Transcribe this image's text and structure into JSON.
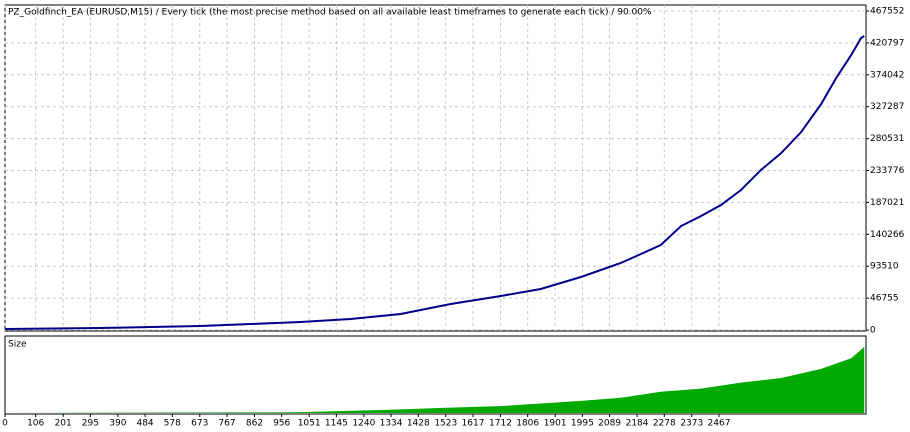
{
  "chart_data": [
    {
      "type": "line",
      "title": "PZ_Goldfinch_EA (EURUSD,M15) / Every tick (the most precise method based on all available least timeframes to generate each tick) / 90.00%",
      "x": [
        0,
        329,
        675,
        848,
        1021,
        1194,
        1367,
        1540,
        1713,
        1851,
        1990,
        2128,
        2266,
        2336,
        2405,
        2474,
        2543,
        2612,
        2682,
        2751,
        2820,
        2872,
        2924,
        2958,
        2969
      ],
      "series": [
        {
          "color": "#00008b",
          "values": [
            1500,
            2900,
            5900,
            8800,
            11700,
            16100,
            23500,
            38100,
            49800,
            60100,
            77700,
            98200,
            124600,
            152400,
            167100,
            183200,
            205200,
            234500,
            259400,
            290200,
            331200,
            369400,
            403100,
            428000,
            430900
          ]
        }
      ],
      "xlim": [
        0,
        2975
      ],
      "ylim": [
        0,
        467552
      ],
      "yticks": [
        0,
        46755,
        93510,
        140266,
        187021,
        233776,
        280531,
        327287,
        374042,
        420797,
        467552
      ],
      "xticks": [
        0,
        106,
        201,
        295,
        390,
        484,
        578,
        673,
        767,
        862,
        956,
        1051,
        1145,
        1240,
        1334,
        1428,
        1523,
        1617,
        1712,
        1806,
        1901,
        1995,
        2089,
        2184,
        2278,
        2373,
        2467
      ],
      "grid": true
    },
    {
      "type": "area",
      "title": "Size",
      "x": [
        0,
        1000,
        1300,
        1540,
        1713,
        1990,
        2128,
        2266,
        2405,
        2543,
        2682,
        2820,
        2924,
        2969
      ],
      "series": [
        {
          "color": "#00aa00",
          "values": [
            0,
            1,
            4,
            7,
            9,
            16,
            20,
            28,
            32,
            40,
            46,
            58,
            72,
            87
          ]
        }
      ],
      "xlim": [
        0,
        2975
      ],
      "ylim": [
        0,
        100
      ],
      "xticks": [
        0,
        106,
        201,
        295,
        390,
        484,
        578,
        673,
        767,
        862,
        956,
        1051,
        1145,
        1240,
        1334,
        1428,
        1523,
        1617,
        1712,
        1806,
        1901,
        1995,
        2089,
        2184,
        2278,
        2373,
        2467
      ]
    }
  ]
}
